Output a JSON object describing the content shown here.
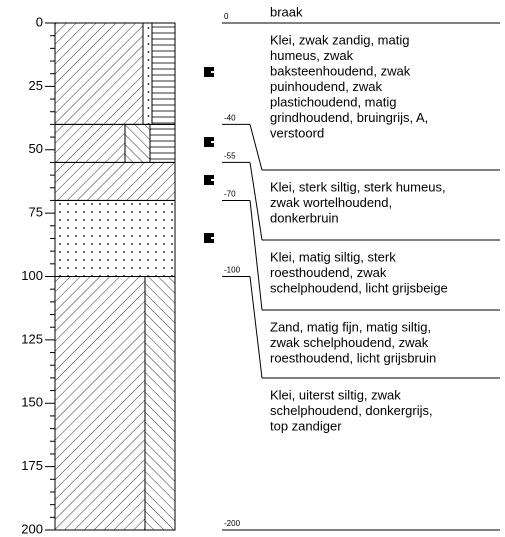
{
  "axis": {
    "ylim": [
      0,
      200
    ],
    "yticks": [
      0,
      25,
      50,
      75,
      100,
      125,
      150,
      175,
      200
    ]
  },
  "boundaries": [
    {
      "value": 0,
      "label": "0"
    },
    {
      "value": 40,
      "label": "-40"
    },
    {
      "value": 55,
      "label": "-55"
    },
    {
      "value": 70,
      "label": "-70"
    },
    {
      "value": 100,
      "label": "-100"
    },
    {
      "value": 200,
      "label": "-200"
    }
  ],
  "top_label": "braak",
  "descriptions": [
    [
      "Klei, zwak zandig, matig",
      "humeus, zwak",
      "baksteenhoudend, zwak",
      "puinhoudend, zwak",
      "plastichoudend, matig",
      "grindhoudend, bruingrijs, A,",
      "verstoord"
    ],
    [
      "Klei, sterk siltig, sterk humeus,",
      "zwak wortelhoudend,",
      "donkerbruin"
    ],
    [
      "Klei, matig siltig, sterk",
      "roesthoudend, zwak",
      "schelphoudend, licht grijsbeige"
    ],
    [
      "Zand, matig fijn, matig siltig,",
      "zwak schelphoudend, zwak",
      "roesthoudend, licht grijsbruin"
    ],
    [
      "Klei, uiterst siltig, zwak",
      "schelphoudend, donkergrijs,",
      "top zandiger"
    ]
  ]
}
